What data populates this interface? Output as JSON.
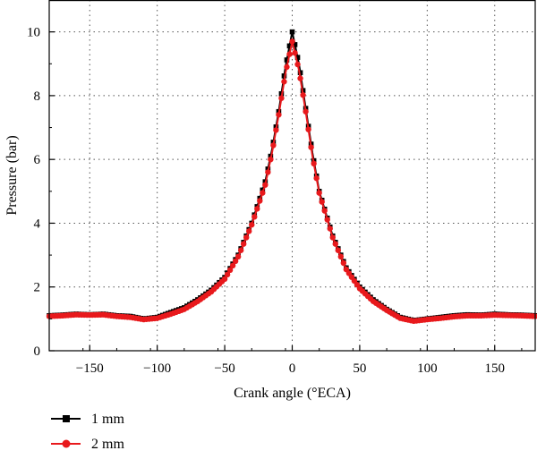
{
  "chart_data": {
    "type": "line",
    "xlabel": "Crank angle (°ECA)",
    "ylabel": "Pressure (bar)",
    "xlim": [
      -180,
      180
    ],
    "ylim": [
      0,
      11
    ],
    "xticks": [
      -150,
      -100,
      -50,
      0,
      50,
      100,
      150
    ],
    "yticks": [
      0,
      2,
      4,
      6,
      8,
      10
    ],
    "grid": true,
    "grid_style": "dotted",
    "legend_position": "bottom-left, below plot",
    "series": [
      {
        "name": "1 mm",
        "color": "#000000",
        "marker": "square",
        "x": [
          -180,
          -170,
          -160,
          -150,
          -140,
          -130,
          -120,
          -110,
          -100,
          -90,
          -80,
          -70,
          -60,
          -50,
          -40,
          -30,
          -20,
          -15,
          -10,
          -5,
          0,
          5,
          10,
          15,
          20,
          30,
          40,
          50,
          60,
          70,
          80,
          90,
          100,
          110,
          120,
          130,
          140,
          150,
          160,
          170,
          180
        ],
        "y": [
          1.1,
          1.12,
          1.15,
          1.13,
          1.15,
          1.1,
          1.08,
          1.0,
          1.05,
          1.2,
          1.35,
          1.6,
          1.9,
          2.3,
          3.0,
          4.0,
          5.3,
          6.3,
          7.5,
          8.9,
          10.0,
          9.0,
          7.6,
          6.2,
          5.0,
          3.6,
          2.6,
          2.0,
          1.6,
          1.3,
          1.05,
          0.95,
          1.0,
          1.05,
          1.1,
          1.13,
          1.12,
          1.15,
          1.13,
          1.12,
          1.1
        ]
      },
      {
        "name": "2 mm",
        "color": "#e8191c",
        "marker": "circle",
        "x": [
          -180,
          -170,
          -160,
          -150,
          -140,
          -130,
          -120,
          -110,
          -100,
          -90,
          -80,
          -70,
          -60,
          -50,
          -40,
          -30,
          -20,
          -15,
          -10,
          -5,
          0,
          5,
          10,
          15,
          20,
          30,
          40,
          50,
          60,
          70,
          80,
          90,
          100,
          110,
          120,
          130,
          140,
          150,
          160,
          170,
          180
        ],
        "y": [
          1.08,
          1.1,
          1.13,
          1.12,
          1.13,
          1.08,
          1.05,
          0.98,
          1.02,
          1.15,
          1.3,
          1.55,
          1.85,
          2.25,
          2.95,
          3.95,
          5.2,
          6.2,
          7.4,
          8.7,
          9.7,
          8.8,
          7.5,
          6.1,
          4.95,
          3.55,
          2.55,
          1.95,
          1.55,
          1.27,
          1.02,
          0.93,
          0.98,
          1.02,
          1.07,
          1.1,
          1.1,
          1.12,
          1.11,
          1.1,
          1.08
        ]
      }
    ]
  }
}
